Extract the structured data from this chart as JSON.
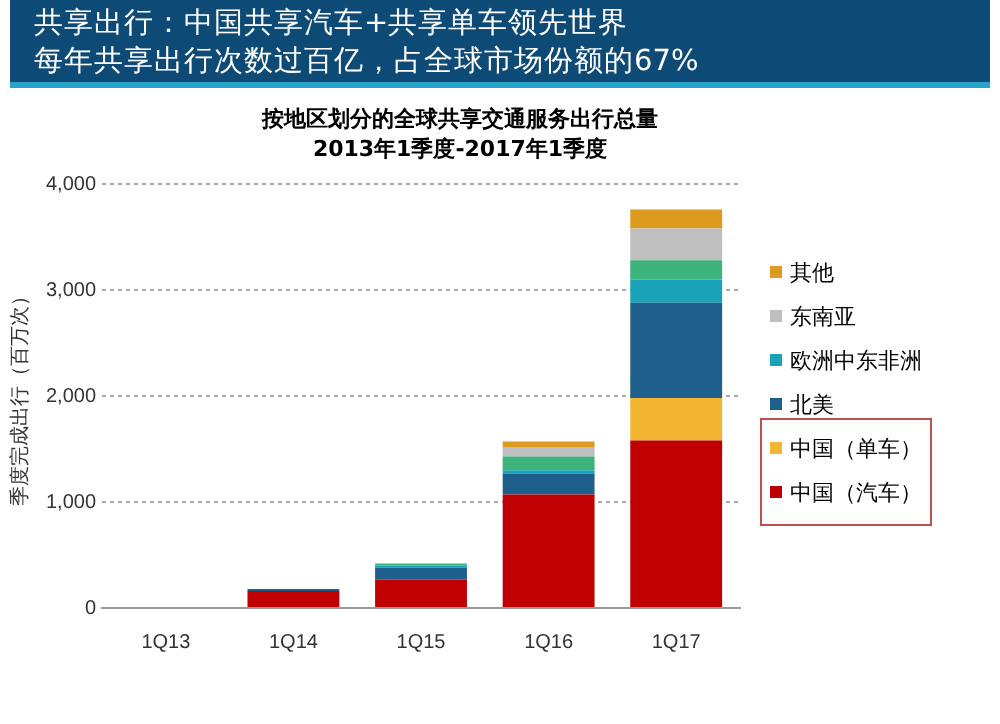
{
  "chart_data": {
    "type": "bar",
    "title": "共享出行：中国共享汽车+共享单车领先世界",
    "subtitle": "每年共享出行次数过百亿，占全球市场份额的67%",
    "annotations": [
      "按地区划分的全球共享交通服务出行总量",
      "2013年1季度-2017年1季度"
    ],
    "ylabel": "季度完成出行（百万次）",
    "categories": [
      "1Q13",
      "1Q14",
      "1Q15",
      "1Q16",
      "1Q17"
    ],
    "stacked": true,
    "series": [
      {
        "name": "中国（汽车）",
        "color": "#c00000",
        "values": [
          null,
          160,
          270,
          1070,
          1580
        ]
      },
      {
        "name": "中国（单车）",
        "color": "#f2b632",
        "values": [
          null,
          null,
          null,
          null,
          400
        ]
      },
      {
        "name": "北美",
        "color": "#1f5f8b",
        "values": [
          null,
          20,
          110,
          200,
          900
        ]
      },
      {
        "name": "欧洲中东非洲",
        "color": "#1aa3b8",
        "values": [
          null,
          null,
          20,
          30,
          220
        ]
      },
      {
        "color": "#3cb37a",
        "values": [
          null,
          null,
          20,
          130,
          180
        ]
      },
      {
        "name": "东南亚",
        "color": "#bfbfbf",
        "values": [
          null,
          null,
          null,
          90,
          300
        ]
      },
      {
        "name": "其他",
        "color": "#dd9a1e",
        "values": [
          null,
          null,
          null,
          50,
          180
        ]
      }
    ],
    "ylim": [
      0,
      4000
    ],
    "yticks": [
      {
        "value": 0,
        "label": "0"
      },
      {
        "value": 1000,
        "label": "1,000"
      },
      {
        "value": 2000,
        "label": "2,000"
      },
      {
        "value": 3000,
        "label": "3,000"
      },
      {
        "value": 4000,
        "label": "4,000"
      }
    ],
    "grid": "y",
    "legend": "right"
  }
}
